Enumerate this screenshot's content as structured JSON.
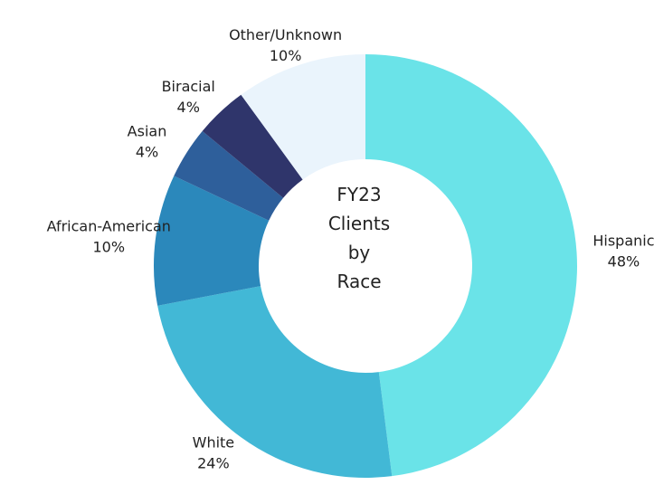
{
  "chart_data": {
    "type": "pie",
    "title": "FY23 Clients by Race",
    "categories": [
      "Hispanic",
      "White",
      "African-American",
      "Asian",
      "Biracial",
      "Other/Unknown"
    ],
    "values": [
      48,
      24,
      10,
      4,
      4,
      10
    ],
    "value_labels": [
      "48%",
      "24%",
      "10%",
      "4%",
      "4%",
      "10%"
    ],
    "colors": [
      "#6ae3e8",
      "#42b8d6",
      "#2b88bb",
      "#2e5f9b",
      "#2f356b",
      "#eaf4fc"
    ]
  }
}
